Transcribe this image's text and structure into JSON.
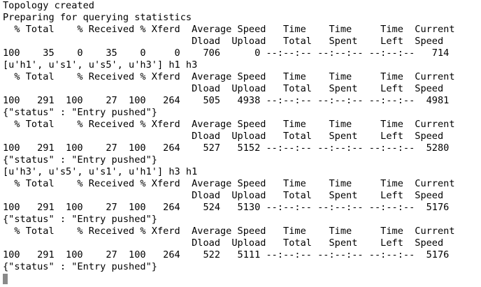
{
  "terminal": {
    "lines": [
      "Topology created",
      "Preparing for querying statistics",
      "  % Total    % Received % Xferd  Average Speed   Time    Time     Time  Current",
      "                                 Dload  Upload   Total   Spent    Left  Speed",
      "100    35    0    35    0     0    706      0 --:--:-- --:--:-- --:--:--   714",
      "[u'h1', u's1', u's5', u'h3'] h1 h3",
      "  % Total    % Received % Xferd  Average Speed   Time    Time     Time  Current",
      "                                 Dload  Upload   Total   Spent    Left  Speed",
      "100   291  100    27  100   264    505   4938 --:--:-- --:--:-- --:--:--  4981",
      "{\"status\" : \"Entry pushed\"}",
      "  % Total    % Received % Xferd  Average Speed   Time    Time     Time  Current",
      "                                 Dload  Upload   Total   Spent    Left  Speed",
      "100   291  100    27  100   264    527   5152 --:--:-- --:--:-- --:--:--  5280",
      "{\"status\" : \"Entry pushed\"}",
      "[u'h3', u's5', u's1', u'h1'] h3 h1",
      "  % Total    % Received % Xferd  Average Speed   Time    Time     Time  Current",
      "                                 Dload  Upload   Total   Spent    Left  Speed",
      "100   291  100    27  100   264    524   5130 --:--:-- --:--:-- --:--:--  5176",
      "{\"status\" : \"Entry pushed\"}",
      "  % Total    % Received % Xferd  Average Speed   Time    Time     Time  Current",
      "                                 Dload  Upload   Total   Spent    Left  Speed",
      "100   291  100    27  100   264    522   5111 --:--:-- --:--:-- --:--:--  5176",
      "{\"status\" : \"Entry pushed\"}"
    ]
  }
}
